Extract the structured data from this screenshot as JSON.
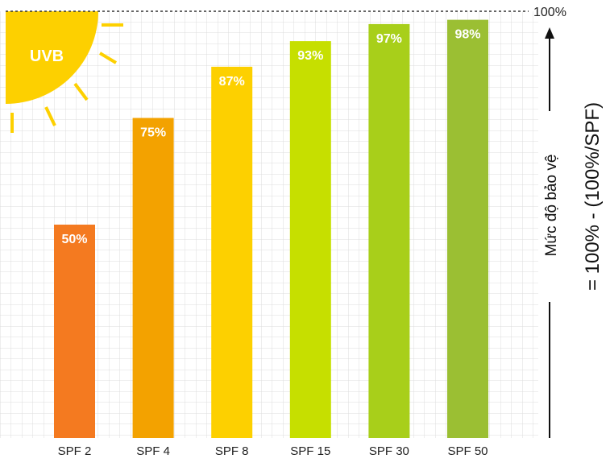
{
  "chart_data": {
    "type": "bar",
    "categories": [
      "SPF 2",
      "SPF 4",
      "SPF 8",
      "SPF 15",
      "SPF 30",
      "SPF 50"
    ],
    "values": [
      50,
      75,
      87,
      93,
      97,
      98
    ],
    "value_labels": [
      "50%",
      "75%",
      "87%",
      "93%",
      "97%",
      "98%"
    ],
    "bar_colors": [
      "#f47a20",
      "#f3a200",
      "#fdd000",
      "#c6df00",
      "#a8cf1a",
      "#9bbf33"
    ],
    "ylim": [
      0,
      100
    ],
    "max_line_label": "100%",
    "badge_label": "UVB",
    "ylabel_line1": "Mức độ bảo vệ",
    "ylabel_line2": "= 100% - (100%/SPF)",
    "grid": true,
    "sun_color": "#fdd000"
  }
}
